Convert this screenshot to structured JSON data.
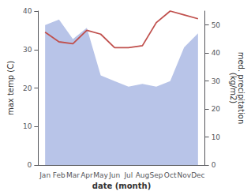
{
  "chart_data": {
    "type": "line",
    "categories": [
      "Jan",
      "Feb",
      "Mar",
      "Apr",
      "May",
      "Jun",
      "Jul",
      "Aug",
      "Sep",
      "Oct",
      "Nov",
      "Dec"
    ],
    "xlabel": "date (month)",
    "ylabel": "max temp (C)",
    "y2label": "med. precipitation\n(kg/m2)",
    "series": [
      {
        "type": "area",
        "axis": "y2",
        "color": "#b8c4e8",
        "values": [
          50,
          52,
          45,
          49,
          32,
          30,
          28,
          29,
          28,
          30,
          42,
          47
        ]
      },
      {
        "type": "line",
        "color": "#c0504d",
        "values": [
          34.5,
          32.0,
          31.5,
          35.0,
          34.0,
          30.5,
          30.5,
          31.0,
          37.0,
          40.0,
          39.0,
          38.0
        ]
      }
    ],
    "ylim": [
      0,
      40
    ],
    "yticks": [
      0,
      10,
      20,
      30,
      40
    ],
    "y2lim": [
      0,
      55
    ],
    "y2ticks": [
      0,
      10,
      20,
      30,
      40,
      50
    ],
    "grid": false
  }
}
